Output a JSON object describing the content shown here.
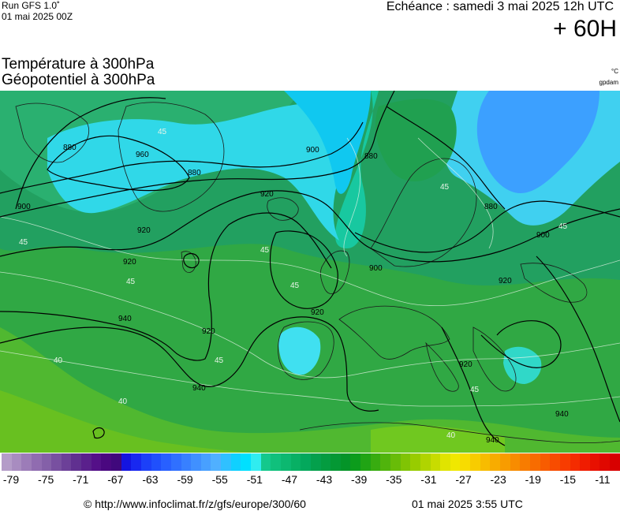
{
  "header": {
    "run_label": "Run GFS 1.0˚",
    "run_date": "01 mai 2025 00Z",
    "valid_time": "Echéance : samedi 3 mai 2025 12h UTC",
    "lead_time": "+ 60H"
  },
  "titles": {
    "line1": "Température à 300hPa",
    "line2": "Géopotentiel à 300hPa",
    "unit_temperature": "°C",
    "unit_geopotential": "gpdam"
  },
  "map": {
    "contour_labels": [
      "880",
      "960",
      "880",
      "900",
      "880",
      "920",
      "900",
      "880",
      "900",
      "920",
      "900",
      "920",
      "920",
      "920",
      "940",
      "920",
      "940",
      "940",
      "940",
      "920"
    ],
    "isotherm_labels": [
      "45",
      "45",
      "45",
      "45",
      "45",
      "45",
      "40",
      "45",
      "45",
      "40",
      "40",
      "45"
    ]
  },
  "colorbar": {
    "ticks": [
      "-79",
      "-75",
      "-71",
      "-67",
      "-63",
      "-59",
      "-55",
      "-51",
      "-47",
      "-43",
      "-39",
      "-35",
      "-31",
      "-27",
      "-23",
      "-19",
      "-15",
      "-11"
    ],
    "colors": [
      "#b49cc8",
      "#a88cc0",
      "#9c7cb8",
      "#906cb0",
      "#8460a8",
      "#7850a0",
      "#6c4098",
      "#603090",
      "#5a208c",
      "#541088",
      "#4a0880",
      "#40087c",
      "#1414e0",
      "#1828f0",
      "#1c40f8",
      "#2050fc",
      "#2860ff",
      "#3070ff",
      "#3880ff",
      "#4090ff",
      "#48a0ff",
      "#50b0ff",
      "#30c0ff",
      "#10d0ff",
      "#00e0ff",
      "#30ecf0",
      "#14c88c",
      "#10c07c",
      "#0cb870",
      "#08b064",
      "#04a85c",
      "#04a04c",
      "#049c40",
      "#049834",
      "#049428",
      "#0c9c1c",
      "#20a414",
      "#38ac10",
      "#50b40c",
      "#68bc08",
      "#80c404",
      "#98cc00",
      "#b0d400",
      "#c8dc00",
      "#e0e400",
      "#f0e800",
      "#f8dc00",
      "#f8cc00",
      "#f8bc00",
      "#f8ac00",
      "#f89c00",
      "#f88c00",
      "#f87c00",
      "#f86c00",
      "#f85c00",
      "#f84c00",
      "#f83c00",
      "#f42c00",
      "#f01c00",
      "#e81000",
      "#e00800",
      "#d80000"
    ]
  },
  "footer": {
    "url": "© http://www.infoclimat.fr/z/gfs/europe/300/60",
    "date": "01 mai 2025  3:55 UTC"
  }
}
